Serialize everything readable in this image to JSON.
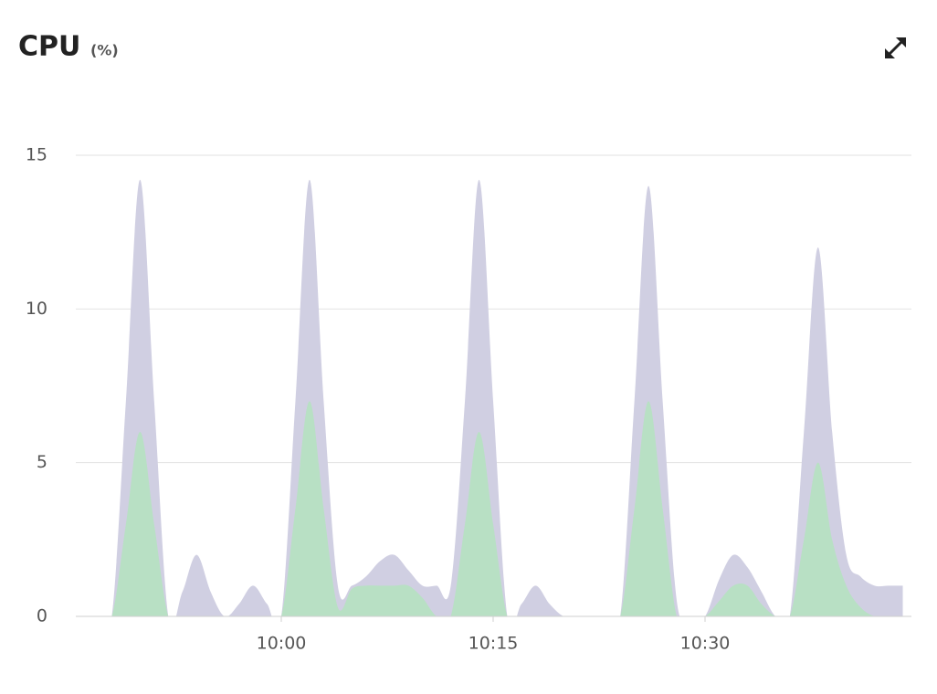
{
  "chart_data": {
    "type": "area",
    "title": "CPU",
    "subtitle": "(%)",
    "x": [
      "09:45",
      "09:46",
      "09:47",
      "09:48",
      "09:49",
      "09:50",
      "09:51",
      "09:52",
      "09:53",
      "09:54",
      "09:55",
      "09:56",
      "09:57",
      "09:58",
      "09:59",
      "10:00",
      "10:01",
      "10:02",
      "10:03",
      "10:04",
      "10:05",
      "10:06",
      "10:07",
      "10:08",
      "10:09",
      "10:10",
      "10:11",
      "10:12",
      "10:13",
      "10:14",
      "10:15",
      "10:16",
      "10:17",
      "10:18",
      "10:19",
      "10:20",
      "10:21",
      "10:22",
      "10:23",
      "10:24",
      "10:25",
      "10:26",
      "10:27",
      "10:28",
      "10:29",
      "10:30",
      "10:31",
      "10:32",
      "10:33",
      "10:34",
      "10:35",
      "10:36",
      "10:37",
      "10:38",
      "10:39",
      "10:40",
      "10:41",
      "10:42",
      "10:43",
      "10:44"
    ],
    "series": [
      {
        "color": "#d0cfe2",
        "values": [
          0,
          0,
          0,
          0,
          7,
          14.2,
          7,
          0,
          0.8,
          2,
          0.8,
          0,
          0.4,
          1,
          0.4,
          0,
          7,
          14.2,
          7,
          1,
          1,
          1.3,
          1.8,
          2,
          1.5,
          1,
          1,
          1,
          7,
          14.2,
          7,
          0,
          0.4,
          1,
          0.4,
          0,
          0,
          0,
          0,
          0,
          7,
          14,
          7,
          0.5,
          0,
          0,
          1.2,
          2,
          1.6,
          0.8,
          0,
          0,
          6,
          12,
          6,
          2,
          1.3,
          1,
          1,
          1
        ]
      },
      {
        "color": "#b8e0c4",
        "values": [
          0,
          0,
          0,
          0,
          3,
          6,
          3,
          0,
          0,
          0,
          0,
          0,
          0,
          0,
          0,
          0,
          3.5,
          7,
          3.5,
          0.3,
          0.9,
          1,
          1,
          1,
          1,
          0.6,
          0,
          0,
          3,
          6,
          3,
          0,
          0,
          0,
          0,
          0,
          0,
          0,
          0,
          0,
          3.5,
          7,
          3.5,
          0,
          0,
          0,
          0.5,
          1,
          1,
          0.4,
          0,
          0,
          2.5,
          5,
          2.5,
          1,
          0.3,
          0,
          0,
          0
        ]
      }
    ],
    "xlim": [
      "09:45",
      "10:45"
    ],
    "xticks": [
      "10:00",
      "10:15",
      "10:30"
    ],
    "ylim": [
      0,
      15
    ],
    "yticks": [
      0,
      5,
      10,
      15
    ],
    "grid": true
  }
}
